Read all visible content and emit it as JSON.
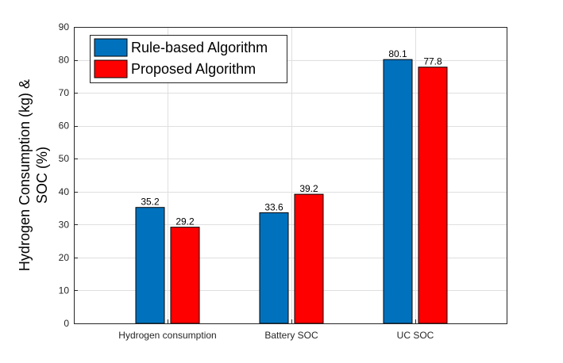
{
  "chart_data": {
    "type": "bar",
    "categories": [
      "Hydrogen consumption",
      "Battery SOC",
      "UC SOC"
    ],
    "series": [
      {
        "name": "Rule-based Algorithm",
        "values": [
          35.2,
          33.6,
          80.1
        ],
        "color": "#0072BD"
      },
      {
        "name": "Proposed Algorithm",
        "values": [
          29.2,
          39.2,
          77.8
        ],
        "color": "#FF0000"
      }
    ],
    "data_labels": [
      [
        "35.2",
        "33.6",
        "80.1"
      ],
      [
        "29.2",
        "39.2",
        "77.8"
      ]
    ],
    "title": "",
    "xlabel": "",
    "ylabel_lines": [
      "Hydrogen Consumption (kg) &",
      "SOC (%)"
    ],
    "ylim": [
      0,
      90
    ],
    "yticks": [
      0,
      10,
      20,
      30,
      40,
      50,
      60,
      70,
      80,
      90
    ],
    "grid": true,
    "legend_position": "top-left"
  }
}
